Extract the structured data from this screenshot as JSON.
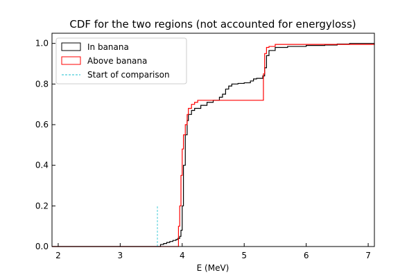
{
  "chart_data": {
    "type": "line",
    "title": "CDF for the two regions (not accounted for energyloss)",
    "xlabel": "E (MeV)",
    "ylabel": "",
    "xlim": [
      1.9,
      7.1
    ],
    "ylim": [
      0.0,
      1.05
    ],
    "x_ticks": [
      2,
      3,
      4,
      5,
      6,
      7
    ],
    "x_tick_labels": [
      "2",
      "3",
      "4",
      "5",
      "6",
      "7"
    ],
    "y_ticks": [
      0.0,
      0.2,
      0.4,
      0.6,
      0.8,
      1.0
    ],
    "y_tick_labels": [
      "0.0",
      "0.2",
      "0.4",
      "0.6",
      "0.8",
      "1.0"
    ],
    "grid": false,
    "legend": {
      "placement": "top-left",
      "entries": [
        "In banana",
        "Above banana",
        "Start of comparison"
      ]
    },
    "series": [
      {
        "name": "In banana",
        "color": "#000000",
        "style": "step",
        "points": [
          [
            1.9,
            0.0
          ],
          [
            3.6,
            0.0
          ],
          [
            3.65,
            0.01
          ],
          [
            3.7,
            0.015
          ],
          [
            3.75,
            0.02
          ],
          [
            3.8,
            0.025
          ],
          [
            3.85,
            0.03
          ],
          [
            3.9,
            0.035
          ],
          [
            3.93,
            0.04
          ],
          [
            3.96,
            0.05
          ],
          [
            3.98,
            0.08
          ],
          [
            4.0,
            0.2
          ],
          [
            4.02,
            0.4
          ],
          [
            4.05,
            0.55
          ],
          [
            4.08,
            0.62
          ],
          [
            4.1,
            0.65
          ],
          [
            4.15,
            0.67
          ],
          [
            4.2,
            0.68
          ],
          [
            4.3,
            0.695
          ],
          [
            4.4,
            0.71
          ],
          [
            4.5,
            0.72
          ],
          [
            4.6,
            0.735
          ],
          [
            4.65,
            0.75
          ],
          [
            4.7,
            0.775
          ],
          [
            4.75,
            0.79
          ],
          [
            4.8,
            0.8
          ],
          [
            4.9,
            0.803
          ],
          [
            5.0,
            0.806
          ],
          [
            5.1,
            0.815
          ],
          [
            5.15,
            0.825
          ],
          [
            5.2,
            0.828
          ],
          [
            5.3,
            0.84
          ],
          [
            5.33,
            0.88
          ],
          [
            5.36,
            0.94
          ],
          [
            5.4,
            0.965
          ],
          [
            5.5,
            0.98
          ],
          [
            5.7,
            0.985
          ],
          [
            6.0,
            0.99
          ],
          [
            6.3,
            0.992
          ],
          [
            6.5,
            0.997
          ],
          [
            6.7,
            1.0
          ],
          [
            7.1,
            1.0
          ]
        ]
      },
      {
        "name": "Above banana",
        "color": "#ff0000",
        "style": "step",
        "points": [
          [
            1.9,
            0.0
          ],
          [
            3.93,
            0.0
          ],
          [
            3.94,
            0.1
          ],
          [
            3.96,
            0.2
          ],
          [
            3.98,
            0.35
          ],
          [
            4.0,
            0.48
          ],
          [
            4.02,
            0.55
          ],
          [
            4.05,
            0.6
          ],
          [
            4.08,
            0.65
          ],
          [
            4.1,
            0.68
          ],
          [
            4.15,
            0.7
          ],
          [
            4.2,
            0.71
          ],
          [
            4.25,
            0.72
          ],
          [
            5.3,
            0.72
          ],
          [
            5.31,
            0.85
          ],
          [
            5.33,
            0.95
          ],
          [
            5.36,
            0.98
          ],
          [
            5.4,
            0.985
          ],
          [
            5.5,
            0.995
          ],
          [
            7.1,
            1.0
          ]
        ]
      },
      {
        "name": "Start of comparison",
        "color": "#17becf",
        "style": "dashed",
        "points": [
          [
            3.6,
            0.0
          ],
          [
            3.6,
            0.2
          ]
        ]
      }
    ]
  }
}
